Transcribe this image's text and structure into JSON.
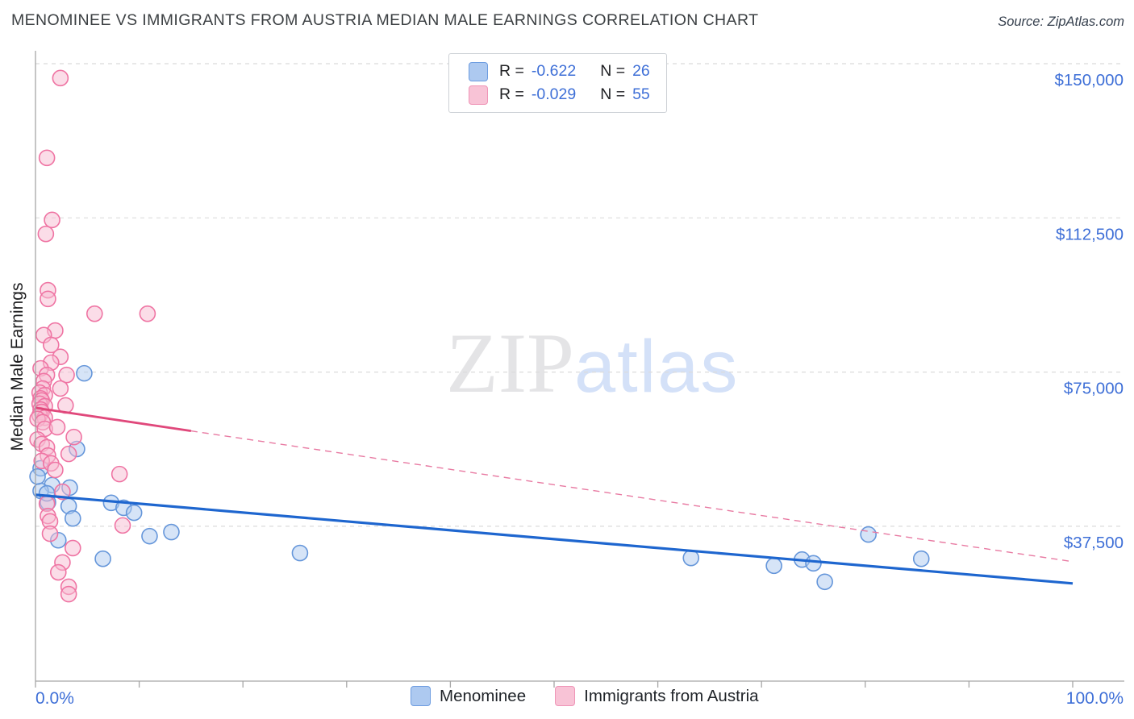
{
  "header": {
    "title": "MENOMINEE VS IMMIGRANTS FROM AUSTRIA MEDIAN MALE EARNINGS CORRELATION CHART",
    "source": "Source: ZipAtlas.com"
  },
  "correlation_legend": {
    "rows": [
      {
        "series": "Menominee",
        "r_label": "R =",
        "r_value": "-0.622",
        "n_label": "N =",
        "n_value": "26"
      },
      {
        "series": "Immigrants from Austria",
        "r_label": "R =",
        "r_value": "-0.029",
        "n_label": "N =",
        "n_value": "55"
      }
    ]
  },
  "watermark": {
    "zip": "ZIP",
    "atlas": "atlas"
  },
  "y_axis": {
    "label": "Median Male Earnings",
    "ticks": [
      "$150,000",
      "$112,500",
      "$75,000",
      "$37,500"
    ],
    "tick_values": [
      150000,
      112500,
      75000,
      37500
    ]
  },
  "x_axis": {
    "min_label": "0.0%",
    "max_label": "100.0%",
    "min": 0,
    "max": 100
  },
  "bottom_legend": [
    {
      "label": "Menominee",
      "color": "#adc9f0"
    },
    {
      "label": "Immigrants from Austria",
      "color": "#f8c3d6"
    }
  ],
  "colors": {
    "axis_text": "#3e6fd7",
    "grid": "#dbdbdb",
    "spine": "#a6a6a6",
    "menominee_trend": "#1e66cf",
    "austria_trend": "#e0487b",
    "austria_trend_dashed": "#e87aa2"
  },
  "chart_data": {
    "type": "scatter",
    "title": "MENOMINEE VS IMMIGRANTS FROM AUSTRIA MEDIAN MALE EARNINGS CORRELATION CHART",
    "xlabel": "",
    "ylabel": "Median Male Earnings",
    "x_unit": "percent",
    "y_unit": "USD",
    "xlim": [
      0,
      100
    ],
    "ylim": [
      0,
      153000
    ],
    "grid": "horizontal-dashed",
    "legend_position": "bottom-center",
    "series": [
      {
        "name": "Menominee",
        "point_stroke": "#6596da",
        "point_fill": "#adc9f0",
        "points": [
          [
            4.7,
            74700
          ],
          [
            4.0,
            56300
          ],
          [
            0.5,
            51600
          ],
          [
            1.6,
            47500
          ],
          [
            3.3,
            46900
          ],
          [
            0.5,
            46100
          ],
          [
            1.2,
            43300
          ],
          [
            3.2,
            42400
          ],
          [
            3.6,
            39400
          ],
          [
            7.3,
            43200
          ],
          [
            8.5,
            42000
          ],
          [
            9.5,
            40800
          ],
          [
            2.2,
            34100
          ],
          [
            11.0,
            35100
          ],
          [
            13.1,
            36100
          ],
          [
            6.5,
            29600
          ],
          [
            25.5,
            31000
          ],
          [
            63.2,
            29800
          ],
          [
            71.2,
            27900
          ],
          [
            73.9,
            29400
          ],
          [
            75.0,
            28500
          ],
          [
            76.1,
            24000
          ],
          [
            80.3,
            35500
          ],
          [
            85.4,
            29600
          ],
          [
            0.2,
            49600
          ],
          [
            1.1,
            45500
          ]
        ]
      },
      {
        "name": "Immigrants from Austria",
        "point_stroke": "#ef74a3",
        "point_fill": "#f8bcd2",
        "points": [
          [
            2.4,
            146500
          ],
          [
            1.1,
            127100
          ],
          [
            1.6,
            112000
          ],
          [
            1.0,
            108600
          ],
          [
            1.2,
            94900
          ],
          [
            1.2,
            92800
          ],
          [
            5.7,
            89200
          ],
          [
            10.8,
            89200
          ],
          [
            1.9,
            85100
          ],
          [
            0.8,
            84000
          ],
          [
            1.5,
            81600
          ],
          [
            2.4,
            78700
          ],
          [
            1.5,
            77300
          ],
          [
            0.5,
            75900
          ],
          [
            1.1,
            74300
          ],
          [
            3.0,
            74300
          ],
          [
            0.8,
            72800
          ],
          [
            2.4,
            71000
          ],
          [
            0.7,
            71000
          ],
          [
            0.4,
            70000
          ],
          [
            0.9,
            69400
          ],
          [
            0.5,
            68600
          ],
          [
            0.6,
            68100
          ],
          [
            0.4,
            67300
          ],
          [
            0.9,
            66700
          ],
          [
            2.9,
            66900
          ],
          [
            0.5,
            65900
          ],
          [
            0.6,
            65300
          ],
          [
            0.4,
            64500
          ],
          [
            0.9,
            63900
          ],
          [
            0.2,
            63600
          ],
          [
            0.7,
            62800
          ],
          [
            0.9,
            61200
          ],
          [
            2.1,
            61600
          ],
          [
            3.7,
            59200
          ],
          [
            0.2,
            58600
          ],
          [
            0.6,
            57500
          ],
          [
            1.1,
            56700
          ],
          [
            1.2,
            54700
          ],
          [
            3.2,
            55100
          ],
          [
            0.6,
            53400
          ],
          [
            1.5,
            52800
          ],
          [
            1.9,
            51200
          ],
          [
            8.1,
            50200
          ],
          [
            2.6,
            45900
          ],
          [
            1.1,
            43000
          ],
          [
            1.2,
            40000
          ],
          [
            1.4,
            38700
          ],
          [
            8.4,
            37700
          ],
          [
            1.4,
            35700
          ],
          [
            3.6,
            32200
          ],
          [
            2.6,
            28700
          ],
          [
            2.2,
            26300
          ],
          [
            3.2,
            22800
          ],
          [
            3.2,
            21000
          ]
        ]
      }
    ],
    "trend_lines": [
      {
        "series": "Menominee",
        "r": -0.622,
        "n": 26,
        "x0": 0,
        "y0": 45150,
        "x1": 100,
        "y1": 23600,
        "style": "solid"
      },
      {
        "series": "Immigrants from Austria",
        "r": -0.029,
        "n": 55,
        "x0": 0,
        "y0": 66300,
        "x1": 100,
        "y1": 28900,
        "style": "solid-then-dashed",
        "solid_until_x": 15
      }
    ]
  }
}
